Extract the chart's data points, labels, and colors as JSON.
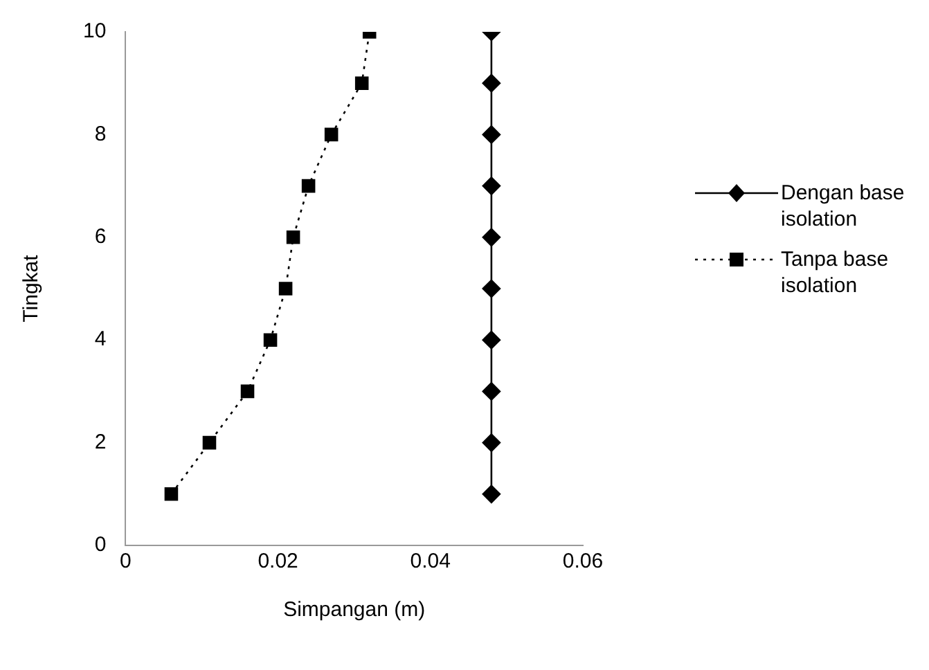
{
  "chart_data": {
    "type": "line",
    "xlabel": "Simpangan (m)",
    "ylabel": "Tingkat",
    "xlim": [
      0,
      0.06
    ],
    "ylim": [
      0,
      10
    ],
    "xticks": [
      0,
      0.02,
      0.04,
      0.06
    ],
    "yticks": [
      0,
      2,
      4,
      6,
      8,
      10
    ],
    "grid": false,
    "legend": "right",
    "series": [
      {
        "name": "Dengan base isolation",
        "color": "#000000",
        "marker": "diamond",
        "line_style": "solid",
        "x": [
          0.048,
          0.048,
          0.048,
          0.048,
          0.048,
          0.048,
          0.048,
          0.048,
          0.048,
          0.048
        ],
        "values": [
          1,
          2,
          3,
          4,
          5,
          6,
          7,
          8,
          9,
          10
        ]
      },
      {
        "name": "Tanpa base isolation",
        "color": "#000000",
        "marker": "square",
        "line_style": "dotted",
        "x": [
          0.006,
          0.011,
          0.016,
          0.019,
          0.021,
          0.022,
          0.024,
          0.027,
          0.031,
          0.032
        ],
        "values": [
          1,
          2,
          3,
          4,
          5,
          6,
          7,
          8,
          9,
          10
        ]
      }
    ]
  }
}
